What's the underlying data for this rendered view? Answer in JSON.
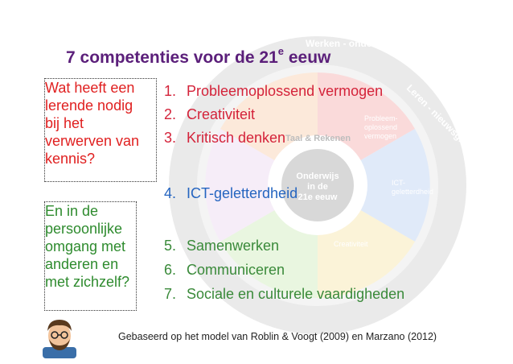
{
  "title": {
    "main": "7 competenties voor de 21",
    "sup": "e",
    "rest": " eeuw"
  },
  "question_red": [
    "Wat heeft een",
    "lerende nodig",
    "bij het",
    "verwerven van",
    "kennis?"
  ],
  "question_green": [
    "En in de",
    "persoonlijke",
    "omgang met",
    "anderen en",
    "met zichzelf?"
  ],
  "competencies": [
    {
      "num": "1.",
      "label": "Probleemoplossend vermogen"
    },
    {
      "num": "2.",
      "label": "Creativiteit"
    },
    {
      "num": "3.",
      "label": "Kritisch denken"
    },
    {
      "num": "4.",
      "label": "ICT-geletterdheid"
    },
    {
      "num": "5.",
      "label": "Samenwerken"
    },
    {
      "num": "6.",
      "label": "Communiceren"
    },
    {
      "num": "7.",
      "label": "Sociale en culturele vaardigheden"
    }
  ],
  "wheel": {
    "outer_top": "Werken - ondernemend",
    "outer_right": "Leren - nieuwsgierig",
    "middle": "Taal & Rekenen",
    "center": [
      "Onderwijs",
      "in de",
      "21e eeuw"
    ],
    "segment_problem": [
      "Probleem-",
      "oplossend",
      "vermogen"
    ],
    "segment_creativity": "Creativiteit",
    "segment_ict": [
      "ICT-",
      "geletterdheid"
    ]
  },
  "footer": "Gebaseerd op het model van Roblin & Voogt (2009) en Marzano (2012)",
  "colors": {
    "title": "#5b1f7a",
    "red": "#d4233a",
    "blue": "#2565c0",
    "green": "#3a8a3a"
  }
}
